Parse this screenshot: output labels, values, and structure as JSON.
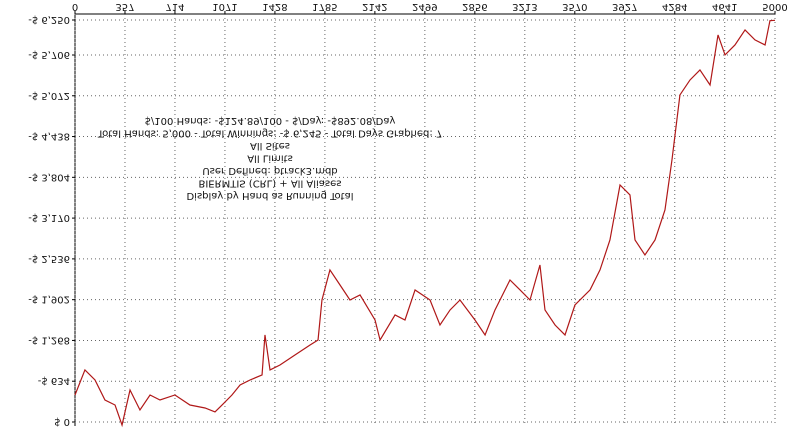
{
  "chart_data": {
    "type": "line",
    "info_lines": [
      "Display by Hand as Running Total",
      "BIERMTIS (CRL) + All Aliases",
      "User Defined: ptrack3.mdb",
      "All Limits",
      "All Sites",
      "Total Hands: 5,000 - Total Winnings: -$ 6,245 - Total Days Graphed: 7",
      "$/100 Hands: -$124.89/100 - $/Day: -$892.08/Day"
    ],
    "xlim": [
      0,
      5000
    ],
    "xticks": [
      0,
      357,
      714,
      1071,
      1428,
      1785,
      2142,
      2499,
      2856,
      3213,
      3570,
      3927,
      4284,
      4641,
      5000
    ],
    "ylim": [
      0,
      -6250
    ],
    "yticks": [
      {
        "value": 0,
        "label": "$ 0"
      },
      {
        "value": -634,
        "label": "-$ 634"
      },
      {
        "value": -1268,
        "label": "-$ 1,268"
      },
      {
        "value": -1902,
        "label": "-$ 1,902"
      },
      {
        "value": -2536,
        "label": "-$ 2,536"
      },
      {
        "value": -3170,
        "label": "-$ 3,170"
      },
      {
        "value": -3804,
        "label": "-$ 3,804"
      },
      {
        "value": -4438,
        "label": "-$ 4,438"
      },
      {
        "value": -5072,
        "label": "-$ 5,072"
      },
      {
        "value": -5706,
        "label": "-$ 5,706"
      },
      {
        "value": -6250,
        "label": "-$ 6,250"
      }
    ],
    "grid": true,
    "flipped": true,
    "series": [
      {
        "color": "#b01818",
        "x": [
          0,
          71,
          143,
          214,
          286,
          336,
          393,
          464,
          536,
          607,
          714,
          821,
          929,
          1000,
          1050,
          1121,
          1179,
          1250,
          1336,
          1357,
          1393,
          1464,
          1571,
          1679,
          1736,
          1764,
          1821,
          1893,
          1964,
          2036,
          2143,
          2179,
          2286,
          2357,
          2429,
          2536,
          2607,
          2679,
          2750,
          2857,
          2929,
          3000,
          3107,
          3179,
          3250,
          3321,
          3357,
          3429,
          3500,
          3571,
          3679,
          3750,
          3821,
          3893,
          3964,
          4000,
          4071,
          4143,
          4214,
          4264,
          4321,
          4393,
          4464,
          4536,
          4593,
          4643,
          4714,
          4786,
          4857,
          4929,
          4964,
          5000
        ],
        "values": [
          -420,
          -809,
          -653,
          -342,
          -264,
          47,
          -498,
          -187,
          -420,
          -342,
          -420,
          -264,
          -218,
          -156,
          -264,
          -420,
          -575,
          -653,
          -731,
          -1353,
          -809,
          -886,
          -1042,
          -1197,
          -1275,
          -1897,
          -2364,
          -2130,
          -1897,
          -1975,
          -1586,
          -1275,
          -1664,
          -1586,
          -2053,
          -1897,
          -1508,
          -1742,
          -1897,
          -1586,
          -1353,
          -1742,
          -2208,
          -2053,
          -1897,
          -2441,
          -1742,
          -1508,
          -1353,
          -1819,
          -2053,
          -2364,
          -2830,
          -3685,
          -3530,
          -2830,
          -2597,
          -2830,
          -3297,
          -4074,
          -5085,
          -5318,
          -5474,
          -5240,
          -6018,
          -5707,
          -5862,
          -6096,
          -5940,
          -5862,
          -6240,
          -6245
        ]
      }
    ]
  }
}
